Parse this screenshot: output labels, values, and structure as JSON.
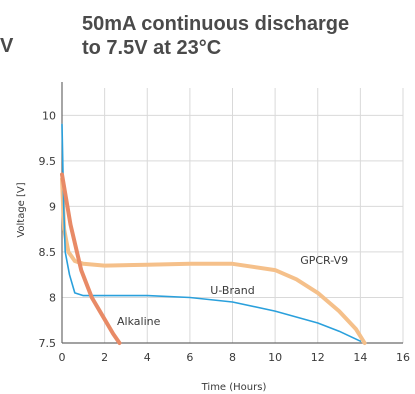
{
  "edge_glyph": "V",
  "chart_data": {
    "type": "line",
    "title_lines": [
      "50mA continuous discharge",
      "to 7.5V at 23°C"
    ],
    "xlabel": "Time (Hours)",
    "ylabel": "Voltage [V]",
    "xlim": [
      0,
      16
    ],
    "ylim": [
      7.5,
      10.3
    ],
    "x_ticks": [
      0,
      2,
      4,
      6,
      8,
      10,
      12,
      14,
      16
    ],
    "x_tick_labels": [
      "0",
      "2",
      "4",
      "6",
      "8",
      "10",
      "12",
      "14",
      "16"
    ],
    "y_ticks": [
      7.5,
      8,
      8.5,
      9,
      9.5,
      10
    ],
    "y_tick_labels": [
      "7.5",
      "8",
      "8.5",
      "9",
      "9.5",
      "10"
    ],
    "grid": true,
    "series": [
      {
        "name": "GPCR-V9",
        "color": "#f5c08a",
        "points": [
          [
            0,
            9.3
          ],
          [
            0.1,
            8.75
          ],
          [
            0.3,
            8.5
          ],
          [
            0.6,
            8.4
          ],
          [
            1,
            8.37
          ],
          [
            2,
            8.35
          ],
          [
            4,
            8.36
          ],
          [
            6,
            8.37
          ],
          [
            8,
            8.37
          ],
          [
            10,
            8.3
          ],
          [
            11,
            8.2
          ],
          [
            12,
            8.05
          ],
          [
            13,
            7.85
          ],
          [
            13.8,
            7.65
          ],
          [
            14.2,
            7.5
          ]
        ]
      },
      {
        "name": "U-Brand",
        "color": "#2aa0dc",
        "points": [
          [
            0,
            9.9
          ],
          [
            0.08,
            9.0
          ],
          [
            0.15,
            8.5
          ],
          [
            0.35,
            8.25
          ],
          [
            0.6,
            8.05
          ],
          [
            1,
            8.02
          ],
          [
            2,
            8.02
          ],
          [
            4,
            8.02
          ],
          [
            6,
            8.0
          ],
          [
            8,
            7.95
          ],
          [
            10,
            7.85
          ],
          [
            12,
            7.72
          ],
          [
            13,
            7.63
          ],
          [
            14,
            7.52
          ]
        ]
      },
      {
        "name": "Alkaline",
        "color": "#e88a66",
        "points": [
          [
            0,
            9.35
          ],
          [
            0.4,
            8.8
          ],
          [
            0.9,
            8.3
          ],
          [
            1.4,
            8.0
          ],
          [
            1.9,
            7.8
          ],
          [
            2.4,
            7.6
          ],
          [
            2.7,
            7.5
          ]
        ]
      }
    ],
    "series_labels": [
      {
        "name": "GPCR-V9",
        "x": 12.3,
        "y": 8.37
      },
      {
        "name": "U-Brand",
        "x": 8.0,
        "y": 8.04
      },
      {
        "name": "Alkaline",
        "x": 3.6,
        "y": 7.7
      }
    ]
  },
  "colors": {
    "grid": "#d9d9d9",
    "axis": "#6a6a6a",
    "text": "#3a3a3a"
  }
}
